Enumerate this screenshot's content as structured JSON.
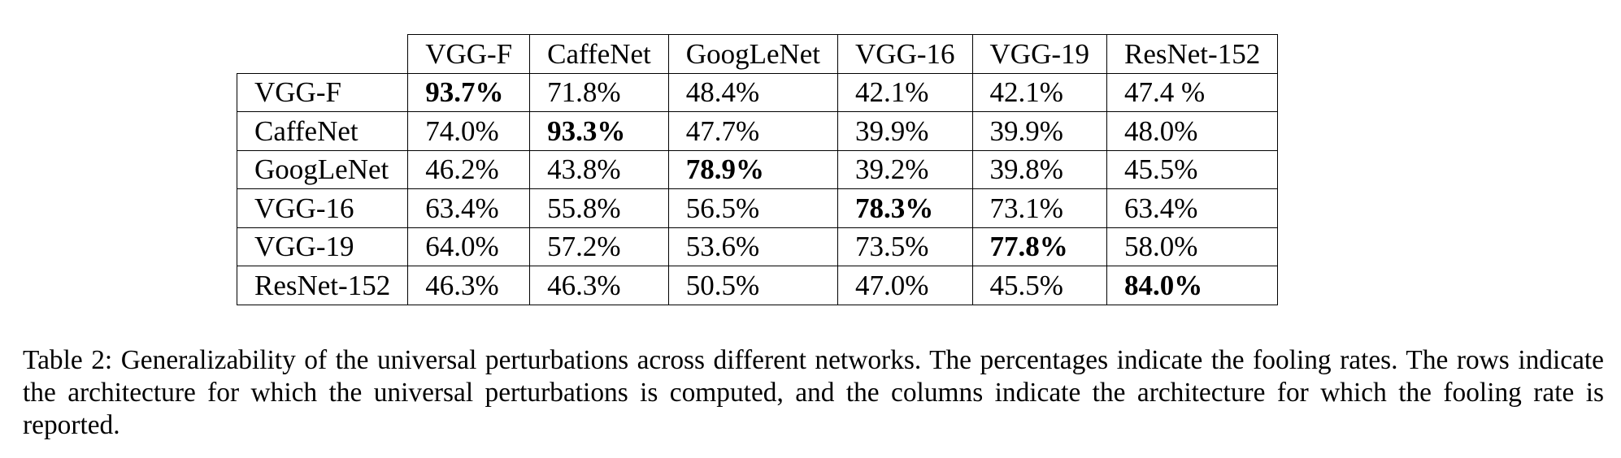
{
  "table": {
    "columns": [
      "VGG-F",
      "CaffeNet",
      "GoogLeNet",
      "VGG-16",
      "VGG-19",
      "ResNet-152"
    ],
    "rows": [
      {
        "label": "VGG-F",
        "values": [
          "93.7%",
          "71.8%",
          "48.4%",
          "42.1%",
          "42.1%",
          "47.4 %"
        ],
        "best": 0
      },
      {
        "label": "CaffeNet",
        "values": [
          "74.0%",
          "93.3%",
          "47.7%",
          "39.9%",
          "39.9%",
          "48.0%"
        ],
        "best": 1
      },
      {
        "label": "GoogLeNet",
        "values": [
          "46.2%",
          "43.8%",
          "78.9%",
          "39.2%",
          "39.8%",
          "45.5%"
        ],
        "best": 2
      },
      {
        "label": "VGG-16",
        "values": [
          "63.4%",
          "55.8%",
          "56.5%",
          "78.3%",
          "73.1%",
          "63.4%"
        ],
        "best": 3
      },
      {
        "label": "VGG-19",
        "values": [
          "64.0%",
          "57.2%",
          "53.6%",
          "73.5%",
          "77.8%",
          "58.0%"
        ],
        "best": 4
      },
      {
        "label": "ResNet-152",
        "values": [
          "46.3%",
          "46.3%",
          "50.5%",
          "47.0%",
          "45.5%",
          "84.0%"
        ],
        "best": 5
      }
    ]
  },
  "caption": "Table 2: Generalizability of the universal perturbations across different networks. The percentages indicate the fooling rates. The rows indicate the architecture for which the universal perturbations is computed, and the columns indicate the architecture for which the fooling rate is reported."
}
